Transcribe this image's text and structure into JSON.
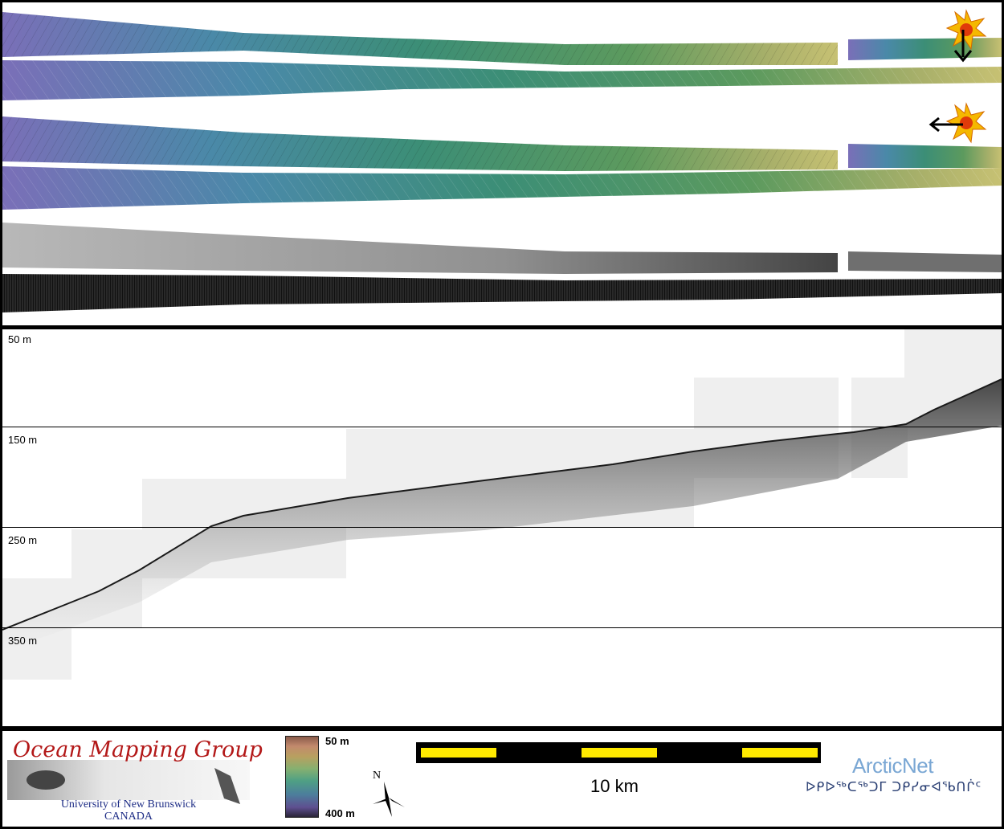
{
  "profile": {
    "depth_labels": [
      "50 m",
      "150 m",
      "250 m",
      "350 m"
    ]
  },
  "legend": {
    "org_title": "Ocean Mapping Group",
    "org_subtitle_1": "University of New Brunswick",
    "org_subtitle_2": "CANADA",
    "depth_top": "50 m",
    "depth_bottom": "400 m",
    "north_label": "N",
    "scale_label": "10 km",
    "arcticnet_name": "ArcticNet",
    "arcticnet_syllabics": "ᐅᑭᐅᖅᑕᖅᑐᒥ ᑐᑭᓯᓂᐊᖃᑎᒌᑦ"
  },
  "colors": {
    "strip_start": "#7a6fb8",
    "strip_mid": "#3c8e76",
    "strip_end": "#c7c173",
    "sun": "#f5b800",
    "scale_segment": "#ffea00",
    "org_title": "#b31818",
    "arcticnet": "#7aa7d4"
  },
  "icons": [
    "sun-icon",
    "arrow-down-icon",
    "arrow-left-icon",
    "compass-icon"
  ]
}
